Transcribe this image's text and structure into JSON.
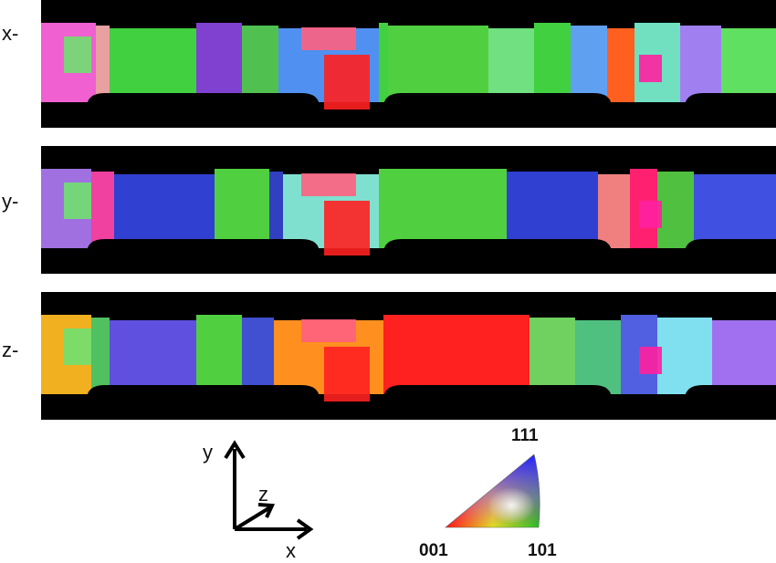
{
  "panels": [
    {
      "label": "x-"
    },
    {
      "label": "y-"
    },
    {
      "label": "z-"
    }
  ],
  "axes": {
    "y": "y",
    "z": "z",
    "x": "x"
  },
  "legend": {
    "top": "111",
    "left": "001",
    "right": "101"
  }
}
